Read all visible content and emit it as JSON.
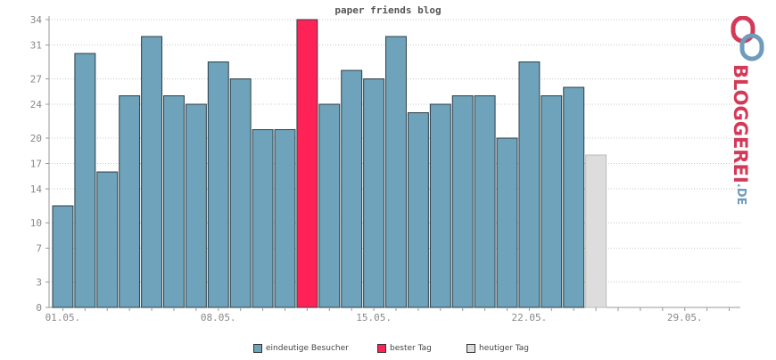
{
  "chart_data": {
    "type": "bar",
    "title": "paper friends blog",
    "xlabel": "",
    "ylabel": "",
    "ylim": [
      0,
      34
    ],
    "yticks": [
      0,
      3,
      7,
      10,
      14,
      17,
      20,
      24,
      27,
      31,
      34
    ],
    "xticks": [
      "01.05.",
      "08.05.",
      "15.05.",
      "22.05.",
      "29.05."
    ],
    "series": [
      {
        "name": "eindeutige Besucher",
        "color": "#6ea3bb",
        "values": [
          12,
          30,
          16,
          25,
          32,
          25,
          24,
          29,
          27,
          21,
          21,
          null,
          24,
          28,
          27,
          32,
          23,
          24,
          25,
          25,
          20,
          29,
          25,
          26
        ]
      },
      {
        "name": "bester Tag",
        "color": "#ff2257",
        "values": [
          null,
          null,
          null,
          null,
          null,
          null,
          null,
          null,
          null,
          null,
          null,
          34
        ]
      },
      {
        "name": "heutiger Tag",
        "color": "#dddddd",
        "values": [
          null,
          null,
          null,
          null,
          null,
          null,
          null,
          null,
          null,
          null,
          null,
          null,
          null,
          null,
          null,
          null,
          null,
          null,
          null,
          null,
          null,
          null,
          null,
          null,
          18
        ]
      }
    ],
    "grid": true,
    "legend_position": "bottom"
  },
  "logo": {
    "text": "BLOGGEREI",
    "suffix": ".DE"
  }
}
